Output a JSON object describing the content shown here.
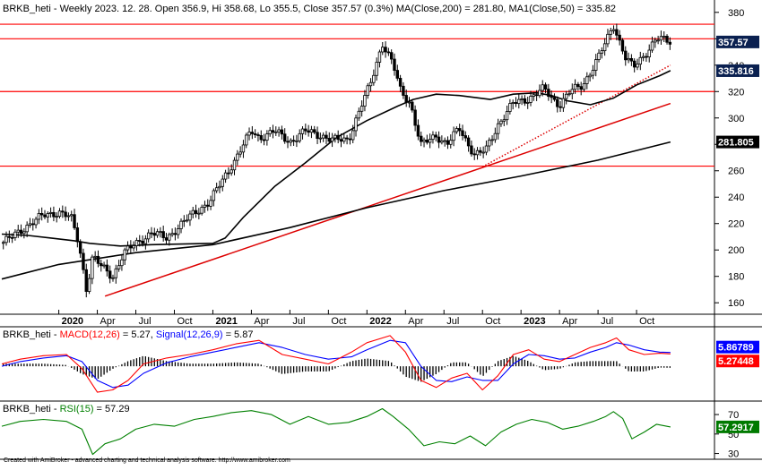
{
  "footer": "Created with AmiBroker - advanced charting and technical analysis software. http://www.amibroker.com",
  "colors": {
    "background": "#ffffff",
    "price": "#000000",
    "ma50": "#000000",
    "ma200": "#000000",
    "hline": "#ff0000",
    "trendline": "#dd0000",
    "macd": "#ff0000",
    "signal": "#0000ff",
    "histogram": "#000000",
    "rsi": "#008000",
    "label_ma50_bg": "#0a2050",
    "label_last_bg": "#0a2050",
    "label_ma200_bg": "#000000",
    "label_signal_bg": "#0000ff",
    "label_macd_bg": "#ff0000",
    "label_rsi_bg": "#007a00"
  },
  "chart_data": [
    {
      "type": "line",
      "pane": "price",
      "title_parts": [
        {
          "text": "BRKB_heti - Weekly 2023. 12. 28. Open 356.9, Hi 358.68, Lo 355.5, Close 357.57 (0.3%) MA(Close,200) = 281.80, ",
          "color": "#000000"
        },
        {
          "text": "MA1(Close,50) = 335.82",
          "color": "#000000"
        }
      ],
      "ylim": [
        152,
        388
      ],
      "yticks": [
        160,
        180,
        200,
        220,
        240,
        260,
        280,
        300,
        320,
        340,
        360,
        380
      ],
      "x_axis_labels": [
        {
          "label": "2020",
          "x": 2020.0,
          "bold": true
        },
        {
          "label": "Apr",
          "x": 2020.25,
          "bold": false
        },
        {
          "label": "Jul",
          "x": 2020.5,
          "bold": false
        },
        {
          "label": "Oct",
          "x": 2020.75,
          "bold": false
        },
        {
          "label": "2021",
          "x": 2021.0,
          "bold": true
        },
        {
          "label": "Apr",
          "x": 2021.25,
          "bold": false
        },
        {
          "label": "Jul",
          "x": 2021.5,
          "bold": false
        },
        {
          "label": "Oct",
          "x": 2021.75,
          "bold": false
        },
        {
          "label": "2022",
          "x": 2022.0,
          "bold": true
        },
        {
          "label": "Apr",
          "x": 2022.25,
          "bold": false
        },
        {
          "label": "Jul",
          "x": 2022.5,
          "bold": false
        },
        {
          "label": "Oct",
          "x": 2022.75,
          "bold": false
        },
        {
          "label": "2023",
          "x": 2023.0,
          "bold": true
        },
        {
          "label": "Apr",
          "x": 2023.25,
          "bold": false
        },
        {
          "label": "Jul",
          "x": 2023.5,
          "bold": false
        },
        {
          "label": "Oct",
          "x": 2023.75,
          "bold": false
        }
      ],
      "x_range": [
        2019.63,
        2024.25
      ],
      "series": [
        {
          "key": "price",
          "x": [
            2019.63,
            2019.7,
            2019.8,
            2019.9,
            2020.0,
            2020.08,
            2020.13,
            2020.18,
            2020.22,
            2020.27,
            2020.35,
            2020.42,
            2020.5,
            2020.6,
            2020.7,
            2020.78,
            2020.88,
            2020.98,
            2021.05,
            2021.15,
            2021.25,
            2021.3,
            2021.4,
            2021.5,
            2021.6,
            2021.7,
            2021.78,
            2021.88,
            2021.96,
            2022.02,
            2022.1,
            2022.17,
            2022.22,
            2022.28,
            2022.35,
            2022.45,
            2022.52,
            2022.6,
            2022.7,
            2022.77,
            2022.85,
            2022.95,
            2023.05,
            2023.15,
            2023.2,
            2023.25,
            2023.32,
            2023.4,
            2023.5,
            2023.56,
            2023.6,
            2023.68,
            2023.73,
            2023.8,
            2023.88,
            2023.96
          ],
          "values": [
            205,
            210,
            219,
            226,
            229,
            224,
            205,
            170,
            195,
            188,
            180,
            197,
            205,
            213,
            209,
            218,
            228,
            237,
            250,
            270,
            290,
            285,
            290,
            282,
            290,
            287,
            283,
            284,
            308,
            325,
            357,
            340,
            320,
            312,
            279,
            287,
            280,
            292,
            272,
            275,
            295,
            311,
            315,
            322,
            315,
            310,
            320,
            325,
            345,
            360,
            371,
            345,
            338,
            348,
            360,
            358
          ]
        },
        {
          "key": "ma50",
          "x": [
            2019.63,
            2019.8,
            2019.95,
            2020.1,
            2020.2,
            2020.4,
            2020.6,
            2020.8,
            2021.0,
            2021.08,
            2021.2,
            2021.4,
            2021.6,
            2021.8,
            2022.0,
            2022.2,
            2022.3,
            2022.45,
            2022.6,
            2022.8,
            2022.95,
            2023.1,
            2023.2,
            2023.3,
            2023.45,
            2023.6,
            2023.75,
            2023.9,
            2023.97
          ],
          "values": [
            212,
            211,
            209,
            207,
            205,
            203,
            204,
            204.5,
            205,
            209,
            225,
            248,
            266,
            285,
            298,
            309,
            314,
            318,
            317,
            314,
            318,
            319,
            317,
            313,
            310,
            315,
            325,
            332,
            335.816
          ]
        },
        {
          "key": "ma200",
          "x": [
            2019.63,
            2020.0,
            2020.5,
            2021.0,
            2021.5,
            2022.0,
            2022.5,
            2023.0,
            2023.5,
            2023.97
          ],
          "values": [
            178,
            189,
            198,
            204,
            217,
            232,
            245,
            256,
            268,
            281.805
          ]
        }
      ],
      "hlines": [
        371,
        360,
        320,
        263.5
      ],
      "trendlines": [
        {
          "x1": 2020.3,
          "y1": 165,
          "x2": 2023.97,
          "y2": 311,
          "style": "solid"
        },
        {
          "x1": 2022.75,
          "y1": 263,
          "x2": 2023.97,
          "y2": 340,
          "style": "dotted"
        }
      ],
      "value_labels": [
        {
          "text": "357.57",
          "value": 357.57,
          "role": "last_close"
        },
        {
          "text": "335.816",
          "value": 335.816,
          "role": "ma50"
        },
        {
          "text": "281.805",
          "value": 281.805,
          "role": "ma200"
        }
      ]
    },
    {
      "type": "line",
      "pane": "macd",
      "title_parts": [
        {
          "text": "BRKB_heti - ",
          "color": "#000000"
        },
        {
          "text": "MACD(12,26)",
          "color": "#ff0000"
        },
        {
          "text": " = 5.27, ",
          "color": "#000000"
        },
        {
          "text": "Signal(12,26,9)",
          "color": "#0000ff"
        },
        {
          "text": " = 5.87",
          "color": "#000000"
        }
      ],
      "ylim": [
        -14,
        16
      ],
      "series": [
        {
          "key": "macd",
          "name": "MACD(12,26)",
          "x": [
            2019.63,
            2019.75,
            2019.9,
            2020.05,
            2020.15,
            2020.25,
            2020.35,
            2020.45,
            2020.55,
            2020.7,
            2020.85,
            2021.0,
            2021.15,
            2021.3,
            2021.45,
            2021.6,
            2021.75,
            2021.9,
            2022.0,
            2022.15,
            2022.25,
            2022.35,
            2022.45,
            2022.55,
            2022.65,
            2022.75,
            2022.85,
            2022.95,
            2023.05,
            2023.15,
            2023.25,
            2023.35,
            2023.45,
            2023.55,
            2023.62,
            2023.7,
            2023.8,
            2023.9,
            2023.97
          ],
          "values": [
            1,
            3,
            4.5,
            5,
            -1,
            -11,
            -10,
            -6,
            1,
            3.5,
            5,
            7,
            9.5,
            11,
            5,
            3,
            1,
            6,
            10,
            13,
            6,
            -6,
            -9,
            -5,
            -3,
            -10,
            -4,
            5,
            7,
            3,
            2,
            5,
            8,
            10,
            12,
            7,
            5,
            5.5,
            5.27
          ]
        },
        {
          "key": "signal",
          "name": "Signal(12,26,9)",
          "x": [
            2019.63,
            2019.75,
            2019.9,
            2020.05,
            2020.15,
            2020.25,
            2020.35,
            2020.45,
            2020.55,
            2020.7,
            2020.85,
            2021.0,
            2021.15,
            2021.3,
            2021.45,
            2021.6,
            2021.75,
            2021.9,
            2022.0,
            2022.15,
            2022.25,
            2022.35,
            2022.45,
            2022.55,
            2022.65,
            2022.75,
            2022.85,
            2022.95,
            2023.05,
            2023.15,
            2023.25,
            2023.35,
            2023.45,
            2023.55,
            2023.62,
            2023.7,
            2023.8,
            2023.9,
            2023.97
          ],
          "values": [
            0,
            2,
            3.5,
            4.5,
            2,
            -6,
            -9,
            -8,
            -3,
            1.5,
            4,
            6,
            8,
            10,
            8,
            5,
            3,
            4,
            7,
            11,
            10,
            0,
            -6,
            -6.5,
            -4.5,
            -6,
            -6,
            1,
            5,
            4.5,
            3,
            3.5,
            6,
            8,
            10,
            9,
            7,
            6,
            5.87
          ]
        }
      ],
      "value_labels": [
        {
          "text": "5.86789",
          "value": 5.86789,
          "role": "signal"
        },
        {
          "text": "5.27448",
          "value": 5.27448,
          "role": "macd"
        }
      ]
    },
    {
      "type": "line",
      "pane": "rsi",
      "title_parts": [
        {
          "text": "BRKB_heti - ",
          "color": "#000000"
        },
        {
          "text": "RSI(15)",
          "color": "#008000"
        },
        {
          "text": " = 57.29",
          "color": "#000000"
        }
      ],
      "ylim": [
        25,
        82
      ],
      "yticks": [
        30,
        50,
        70
      ],
      "series": [
        {
          "key": "rsi",
          "name": "RSI(15)",
          "x": [
            2019.63,
            2019.75,
            2019.9,
            2020.05,
            2020.15,
            2020.22,
            2020.3,
            2020.4,
            2020.5,
            2020.62,
            2020.75,
            2020.88,
            2021.0,
            2021.12,
            2021.25,
            2021.38,
            2021.5,
            2021.62,
            2021.75,
            2021.88,
            2022.0,
            2022.1,
            2022.17,
            2022.27,
            2022.37,
            2022.47,
            2022.57,
            2022.67,
            2022.77,
            2022.87,
            2022.97,
            2023.07,
            2023.17,
            2023.27,
            2023.37,
            2023.47,
            2023.55,
            2023.6,
            2023.66,
            2023.72,
            2023.8,
            2023.88,
            2023.97
          ],
          "values": [
            58,
            63,
            65,
            63,
            55,
            29,
            40,
            45,
            55,
            60,
            58,
            65,
            68,
            72,
            74,
            70,
            60,
            68,
            60,
            62,
            68,
            76,
            68,
            55,
            38,
            42,
            40,
            48,
            38,
            52,
            60,
            65,
            62,
            55,
            58,
            63,
            68,
            73,
            66,
            45,
            52,
            60,
            57.29
          ]
        }
      ],
      "value_labels": [
        {
          "text": "57.2917",
          "value": 57.2917,
          "role": "rsi"
        }
      ]
    }
  ]
}
